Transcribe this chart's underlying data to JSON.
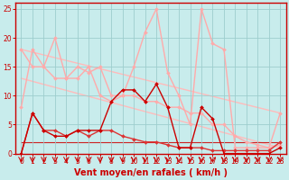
{
  "background_color": "#c8ecec",
  "grid_color": "#9ecece",
  "xlabel": "Vent moyen/en rafales ( km/h )",
  "xlabel_color": "#cc0000",
  "xlabel_fontsize": 7,
  "tick_color": "#cc0000",
  "tick_fontsize": 5.5,
  "xlim": [
    -0.5,
    23.5
  ],
  "ylim": [
    0,
    26
  ],
  "yticks": [
    0,
    5,
    10,
    15,
    20,
    25
  ],
  "xticks": [
    0,
    1,
    2,
    3,
    4,
    5,
    6,
    7,
    8,
    9,
    10,
    11,
    12,
    13,
    14,
    15,
    16,
    17,
    18,
    19,
    20,
    21,
    22,
    23
  ],
  "series": [
    {
      "x": [
        0,
        23
      ],
      "y": [
        18,
        7
      ],
      "color": "#ffbbbb",
      "linewidth": 1.0,
      "marker": null,
      "markersize": 0,
      "zorder": 1
    },
    {
      "x": [
        0,
        23
      ],
      "y": [
        13,
        1
      ],
      "color": "#ffbbbb",
      "linewidth": 1.0,
      "marker": null,
      "markersize": 0,
      "zorder": 1
    },
    {
      "x": [
        0,
        1,
        2,
        3,
        4,
        5,
        6,
        7,
        8,
        9,
        10,
        11,
        12,
        13,
        14,
        15,
        16,
        17,
        18,
        19,
        20,
        21,
        22,
        23
      ],
      "y": [
        8,
        18,
        15,
        20,
        13,
        15,
        14,
        15,
        10,
        10,
        15,
        21,
        25,
        14,
        10,
        5,
        25,
        19,
        18,
        1,
        1,
        1,
        1,
        7
      ],
      "color": "#ffaaaa",
      "linewidth": 1.0,
      "marker": "D",
      "markersize": 2.0,
      "zorder": 2
    },
    {
      "x": [
        0,
        1,
        2,
        3,
        4,
        5,
        6,
        7,
        8,
        9,
        10,
        11,
        12,
        13,
        14,
        15,
        16,
        17,
        18,
        19,
        20,
        21,
        22,
        23
      ],
      "y": [
        18,
        15,
        15,
        13,
        13,
        13,
        15,
        10,
        9,
        10,
        10,
        9,
        9,
        8,
        8,
        7,
        7,
        5,
        5,
        3,
        2,
        1.5,
        1,
        1.5
      ],
      "color": "#ffaaaa",
      "linewidth": 1.0,
      "marker": "D",
      "markersize": 2.0,
      "zorder": 2
    },
    {
      "x": [
        0,
        23
      ],
      "y": [
        2,
        2
      ],
      "color": "#cc2222",
      "linewidth": 0.8,
      "marker": null,
      "markersize": 0,
      "zorder": 1
    },
    {
      "x": [
        0,
        1,
        2,
        3,
        4,
        5,
        6,
        7,
        8,
        9,
        10,
        11,
        12,
        13,
        14,
        15,
        16,
        17,
        18,
        19,
        20,
        21,
        22,
        23
      ],
      "y": [
        0,
        7,
        4,
        4,
        3,
        4,
        3,
        4,
        4,
        3,
        2.5,
        2,
        2,
        1.5,
        1,
        1,
        1,
        0.5,
        0.5,
        0.5,
        0.5,
        0.5,
        0.5,
        2
      ],
      "color": "#dd3333",
      "linewidth": 1.0,
      "marker": "D",
      "markersize": 2.0,
      "zorder": 3
    },
    {
      "x": [
        0,
        1,
        2,
        3,
        4,
        5,
        6,
        7,
        8,
        9,
        10,
        11,
        12,
        13,
        14,
        15,
        16,
        17,
        18,
        19,
        20,
        21,
        22,
        23
      ],
      "y": [
        0,
        7,
        4,
        3,
        3,
        4,
        4,
        4,
        9,
        11,
        11,
        9,
        12,
        8,
        1,
        1,
        8,
        6,
        0,
        0,
        0,
        0,
        0,
        1
      ],
      "color": "#cc0000",
      "linewidth": 1.0,
      "marker": "D",
      "markersize": 2.0,
      "zorder": 4
    }
  ],
  "arrow_color": "#cc0000",
  "spine_color": "#cc0000"
}
